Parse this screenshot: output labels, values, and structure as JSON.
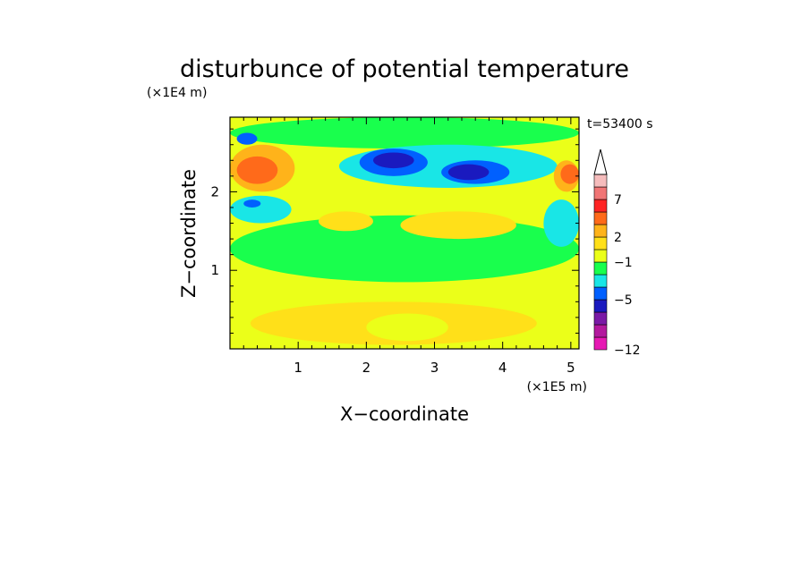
{
  "chart_data": {
    "type": "heatmap",
    "title": "disturbunce of potential temperature",
    "time_label": "t=53400 s",
    "xlabel": "X−coordinate",
    "ylabel": "Z−coordinate",
    "x_scale_label": "(×1E5 m)",
    "y_scale_label": "(×1E4 m)",
    "x_ticks": [
      1,
      2,
      3,
      4,
      5
    ],
    "y_ticks": [
      1,
      2
    ],
    "xlim": [
      0,
      5.12
    ],
    "ylim": [
      0,
      2.95
    ],
    "colorbar": {
      "label_values": [
        -12,
        -5,
        -1,
        2,
        7
      ],
      "labels": [
        "−12",
        "−5",
        "−1",
        "2",
        "7"
      ],
      "colors": [
        "#e619b3",
        "#b3199e",
        "#7a1aa6",
        "#1a1abf",
        "#0060ff",
        "#19e6e6",
        "#19ff4d",
        "#ebff19",
        "#ffe019",
        "#ffb31a",
        "#ff6a1a",
        "#ff2424",
        "#f07575",
        "#f5bcbc"
      ],
      "extend": "max"
    },
    "field_regions": [
      {
        "x": [
          0.0,
          5.12
        ],
        "z": [
          0.0,
          2.95
        ],
        "color": "#ebff19"
      },
      {
        "x": [
          0.0,
          5.12
        ],
        "z": [
          0.85,
          1.7
        ],
        "color": "#19ff4d"
      },
      {
        "x": [
          0.3,
          4.5
        ],
        "z": [
          0.05,
          0.6
        ],
        "color": "#ffe019"
      },
      {
        "x": [
          2.0,
          3.2
        ],
        "z": [
          0.1,
          0.45
        ],
        "color": "#ebff19"
      },
      {
        "x": [
          0.0,
          5.12
        ],
        "z": [
          2.55,
          2.95
        ],
        "color": "#19ff4d"
      },
      {
        "x": [
          0.0,
          0.95
        ],
        "z": [
          2.0,
          2.6
        ],
        "color": "#ffb31a"
      },
      {
        "x": [
          0.1,
          0.7
        ],
        "z": [
          2.1,
          2.45
        ],
        "color": "#ff6a1a"
      },
      {
        "x": [
          0.0,
          0.9
        ],
        "z": [
          1.6,
          1.95
        ],
        "color": "#19e6e6"
      },
      {
        "x": [
          0.2,
          0.45
        ],
        "z": [
          1.8,
          1.9
        ],
        "color": "#0060ff"
      },
      {
        "x": [
          0.1,
          0.4
        ],
        "z": [
          2.6,
          2.75
        ],
        "color": "#0060ff"
      },
      {
        "x": [
          2.5,
          4.2
        ],
        "z": [
          1.4,
          1.75
        ],
        "color": "#ffe019"
      },
      {
        "x": [
          1.3,
          2.1
        ],
        "z": [
          1.5,
          1.75
        ],
        "color": "#ffe019"
      },
      {
        "x": [
          1.6,
          4.8
        ],
        "z": [
          2.05,
          2.6
        ],
        "color": "#19e6e6"
      },
      {
        "x": [
          1.9,
          2.9
        ],
        "z": [
          2.2,
          2.55
        ],
        "color": "#0060ff"
      },
      {
        "x": [
          2.1,
          2.7
        ],
        "z": [
          2.3,
          2.5
        ],
        "color": "#1a1abf"
      },
      {
        "x": [
          3.1,
          4.1
        ],
        "z": [
          2.1,
          2.4
        ],
        "color": "#0060ff"
      },
      {
        "x": [
          3.2,
          3.8
        ],
        "z": [
          2.15,
          2.35
        ],
        "color": "#1a1abf"
      },
      {
        "x": [
          4.6,
          5.12
        ],
        "z": [
          1.3,
          1.9
        ],
        "color": "#19e6e6"
      },
      {
        "x": [
          4.75,
          5.12
        ],
        "z": [
          2.0,
          2.4
        ],
        "color": "#ffb31a"
      },
      {
        "x": [
          4.85,
          5.12
        ],
        "z": [
          2.1,
          2.35
        ],
        "color": "#ff6a1a"
      }
    ]
  }
}
